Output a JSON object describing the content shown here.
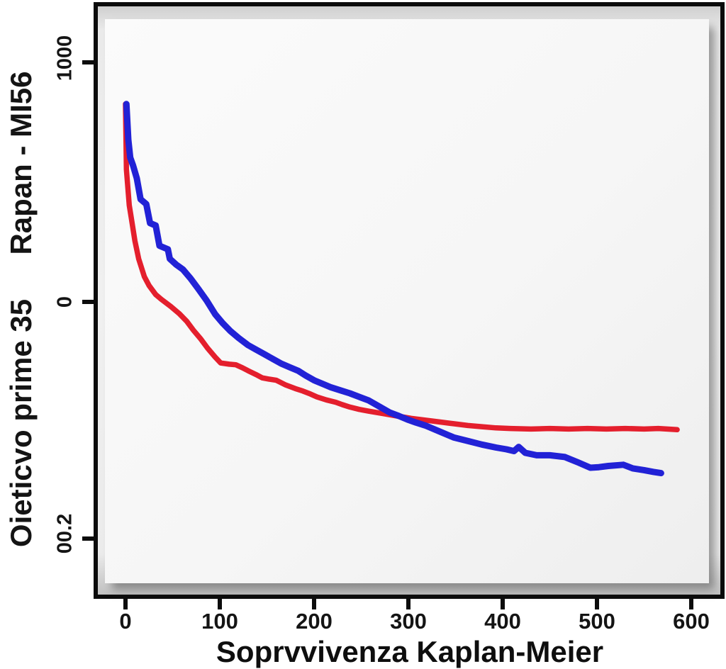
{
  "figure": {
    "x_axis_title": "Soprvvivenza Kaplan-Meier",
    "y_axis_title_upper": "Rapan - MI56",
    "y_axis_title_lower": "Oieticvo prime 35"
  },
  "chart_data": {
    "type": "line",
    "subtype": "kaplan-meier-survival-curves",
    "title": "Soprvvivenza Kaplan-Meier",
    "xlabel": "Soprvvivenza Kaplan-Meier",
    "ylabel": "Rapan - MI56 / Oieticvo prime 35",
    "x_ticks": [
      0,
      100,
      200,
      300,
      400,
      500,
      600
    ],
    "y_tick_labels": [
      "1000",
      "0",
      "00.2"
    ],
    "xlim": [
      0,
      632
    ],
    "ylim_estimated_survival": [
      0.2,
      1.0
    ],
    "grid": false,
    "legend": "none",
    "colors": {
      "series_red": "#e41f2d",
      "series_blue": "#2222d6",
      "frame": "#0b0b0b",
      "panel": "#f6f6f6"
    },
    "series": [
      {
        "name": "red-curve",
        "color_key": "series_red",
        "points": [
          [
            0,
            0.93
          ],
          [
            1,
            0.82
          ],
          [
            4,
            0.76
          ],
          [
            6,
            0.74
          ],
          [
            10,
            0.7
          ],
          [
            14,
            0.67
          ],
          [
            20,
            0.64
          ],
          [
            25,
            0.625
          ],
          [
            32,
            0.61
          ],
          [
            38,
            0.602
          ],
          [
            48,
            0.59
          ],
          [
            57,
            0.578
          ],
          [
            65,
            0.565
          ],
          [
            72,
            0.55
          ],
          [
            80,
            0.535
          ],
          [
            87,
            0.52
          ],
          [
            95,
            0.505
          ],
          [
            101,
            0.495
          ],
          [
            110,
            0.493
          ],
          [
            117,
            0.492
          ],
          [
            124,
            0.487
          ],
          [
            130,
            0.482
          ],
          [
            138,
            0.476
          ],
          [
            145,
            0.47
          ],
          [
            152,
            0.468
          ],
          [
            160,
            0.466
          ],
          [
            170,
            0.458
          ],
          [
            180,
            0.452
          ],
          [
            188,
            0.448
          ],
          [
            196,
            0.443
          ],
          [
            203,
            0.438
          ],
          [
            213,
            0.433
          ],
          [
            223,
            0.429
          ],
          [
            230,
            0.425
          ],
          [
            238,
            0.421
          ],
          [
            248,
            0.417
          ],
          [
            258,
            0.414
          ],
          [
            273,
            0.41
          ],
          [
            288,
            0.406
          ],
          [
            303,
            0.402
          ],
          [
            318,
            0.399
          ],
          [
            333,
            0.396
          ],
          [
            348,
            0.393
          ],
          [
            363,
            0.39
          ],
          [
            378,
            0.388
          ],
          [
            393,
            0.386
          ],
          [
            408,
            0.385
          ],
          [
            430,
            0.384
          ],
          [
            450,
            0.385
          ],
          [
            470,
            0.384
          ],
          [
            490,
            0.385
          ],
          [
            510,
            0.384
          ],
          [
            530,
            0.385
          ],
          [
            550,
            0.384
          ],
          [
            565,
            0.385
          ],
          [
            585,
            0.383
          ]
        ]
      },
      {
        "name": "blue-curve",
        "color_key": "series_blue",
        "points": [
          [
            1,
            0.93
          ],
          [
            3,
            0.87
          ],
          [
            5,
            0.84
          ],
          [
            8,
            0.827
          ],
          [
            12,
            0.805
          ],
          [
            16,
            0.77
          ],
          [
            22,
            0.762
          ],
          [
            26,
            0.73
          ],
          [
            32,
            0.726
          ],
          [
            36,
            0.692
          ],
          [
            45,
            0.686
          ],
          [
            47,
            0.67
          ],
          [
            54,
            0.66
          ],
          [
            61,
            0.652
          ],
          [
            69,
            0.637
          ],
          [
            77,
            0.62
          ],
          [
            86,
            0.6
          ],
          [
            95,
            0.577
          ],
          [
            103,
            0.562
          ],
          [
            111,
            0.549
          ],
          [
            120,
            0.537
          ],
          [
            130,
            0.525
          ],
          [
            138,
            0.518
          ],
          [
            147,
            0.51
          ],
          [
            156,
            0.502
          ],
          [
            165,
            0.494
          ],
          [
            174,
            0.488
          ],
          [
            183,
            0.482
          ],
          [
            191,
            0.474
          ],
          [
            200,
            0.466
          ],
          [
            209,
            0.46
          ],
          [
            218,
            0.454
          ],
          [
            228,
            0.449
          ],
          [
            238,
            0.444
          ],
          [
            248,
            0.438
          ],
          [
            258,
            0.432
          ],
          [
            269,
            0.422
          ],
          [
            280,
            0.412
          ],
          [
            290,
            0.406
          ],
          [
            299,
            0.4
          ],
          [
            308,
            0.395
          ],
          [
            318,
            0.39
          ],
          [
            333,
            0.38
          ],
          [
            348,
            0.37
          ],
          [
            363,
            0.364
          ],
          [
            378,
            0.358
          ],
          [
            393,
            0.353
          ],
          [
            404,
            0.35
          ],
          [
            412,
            0.347
          ],
          [
            417,
            0.354
          ],
          [
            424,
            0.344
          ],
          [
            436,
            0.34
          ],
          [
            450,
            0.34
          ],
          [
            466,
            0.337
          ],
          [
            480,
            0.328
          ],
          [
            493,
            0.319
          ],
          [
            502,
            0.32
          ],
          [
            512,
            0.322
          ],
          [
            528,
            0.324
          ],
          [
            538,
            0.318
          ],
          [
            550,
            0.315
          ],
          [
            560,
            0.312
          ],
          [
            568,
            0.31
          ]
        ]
      }
    ]
  }
}
